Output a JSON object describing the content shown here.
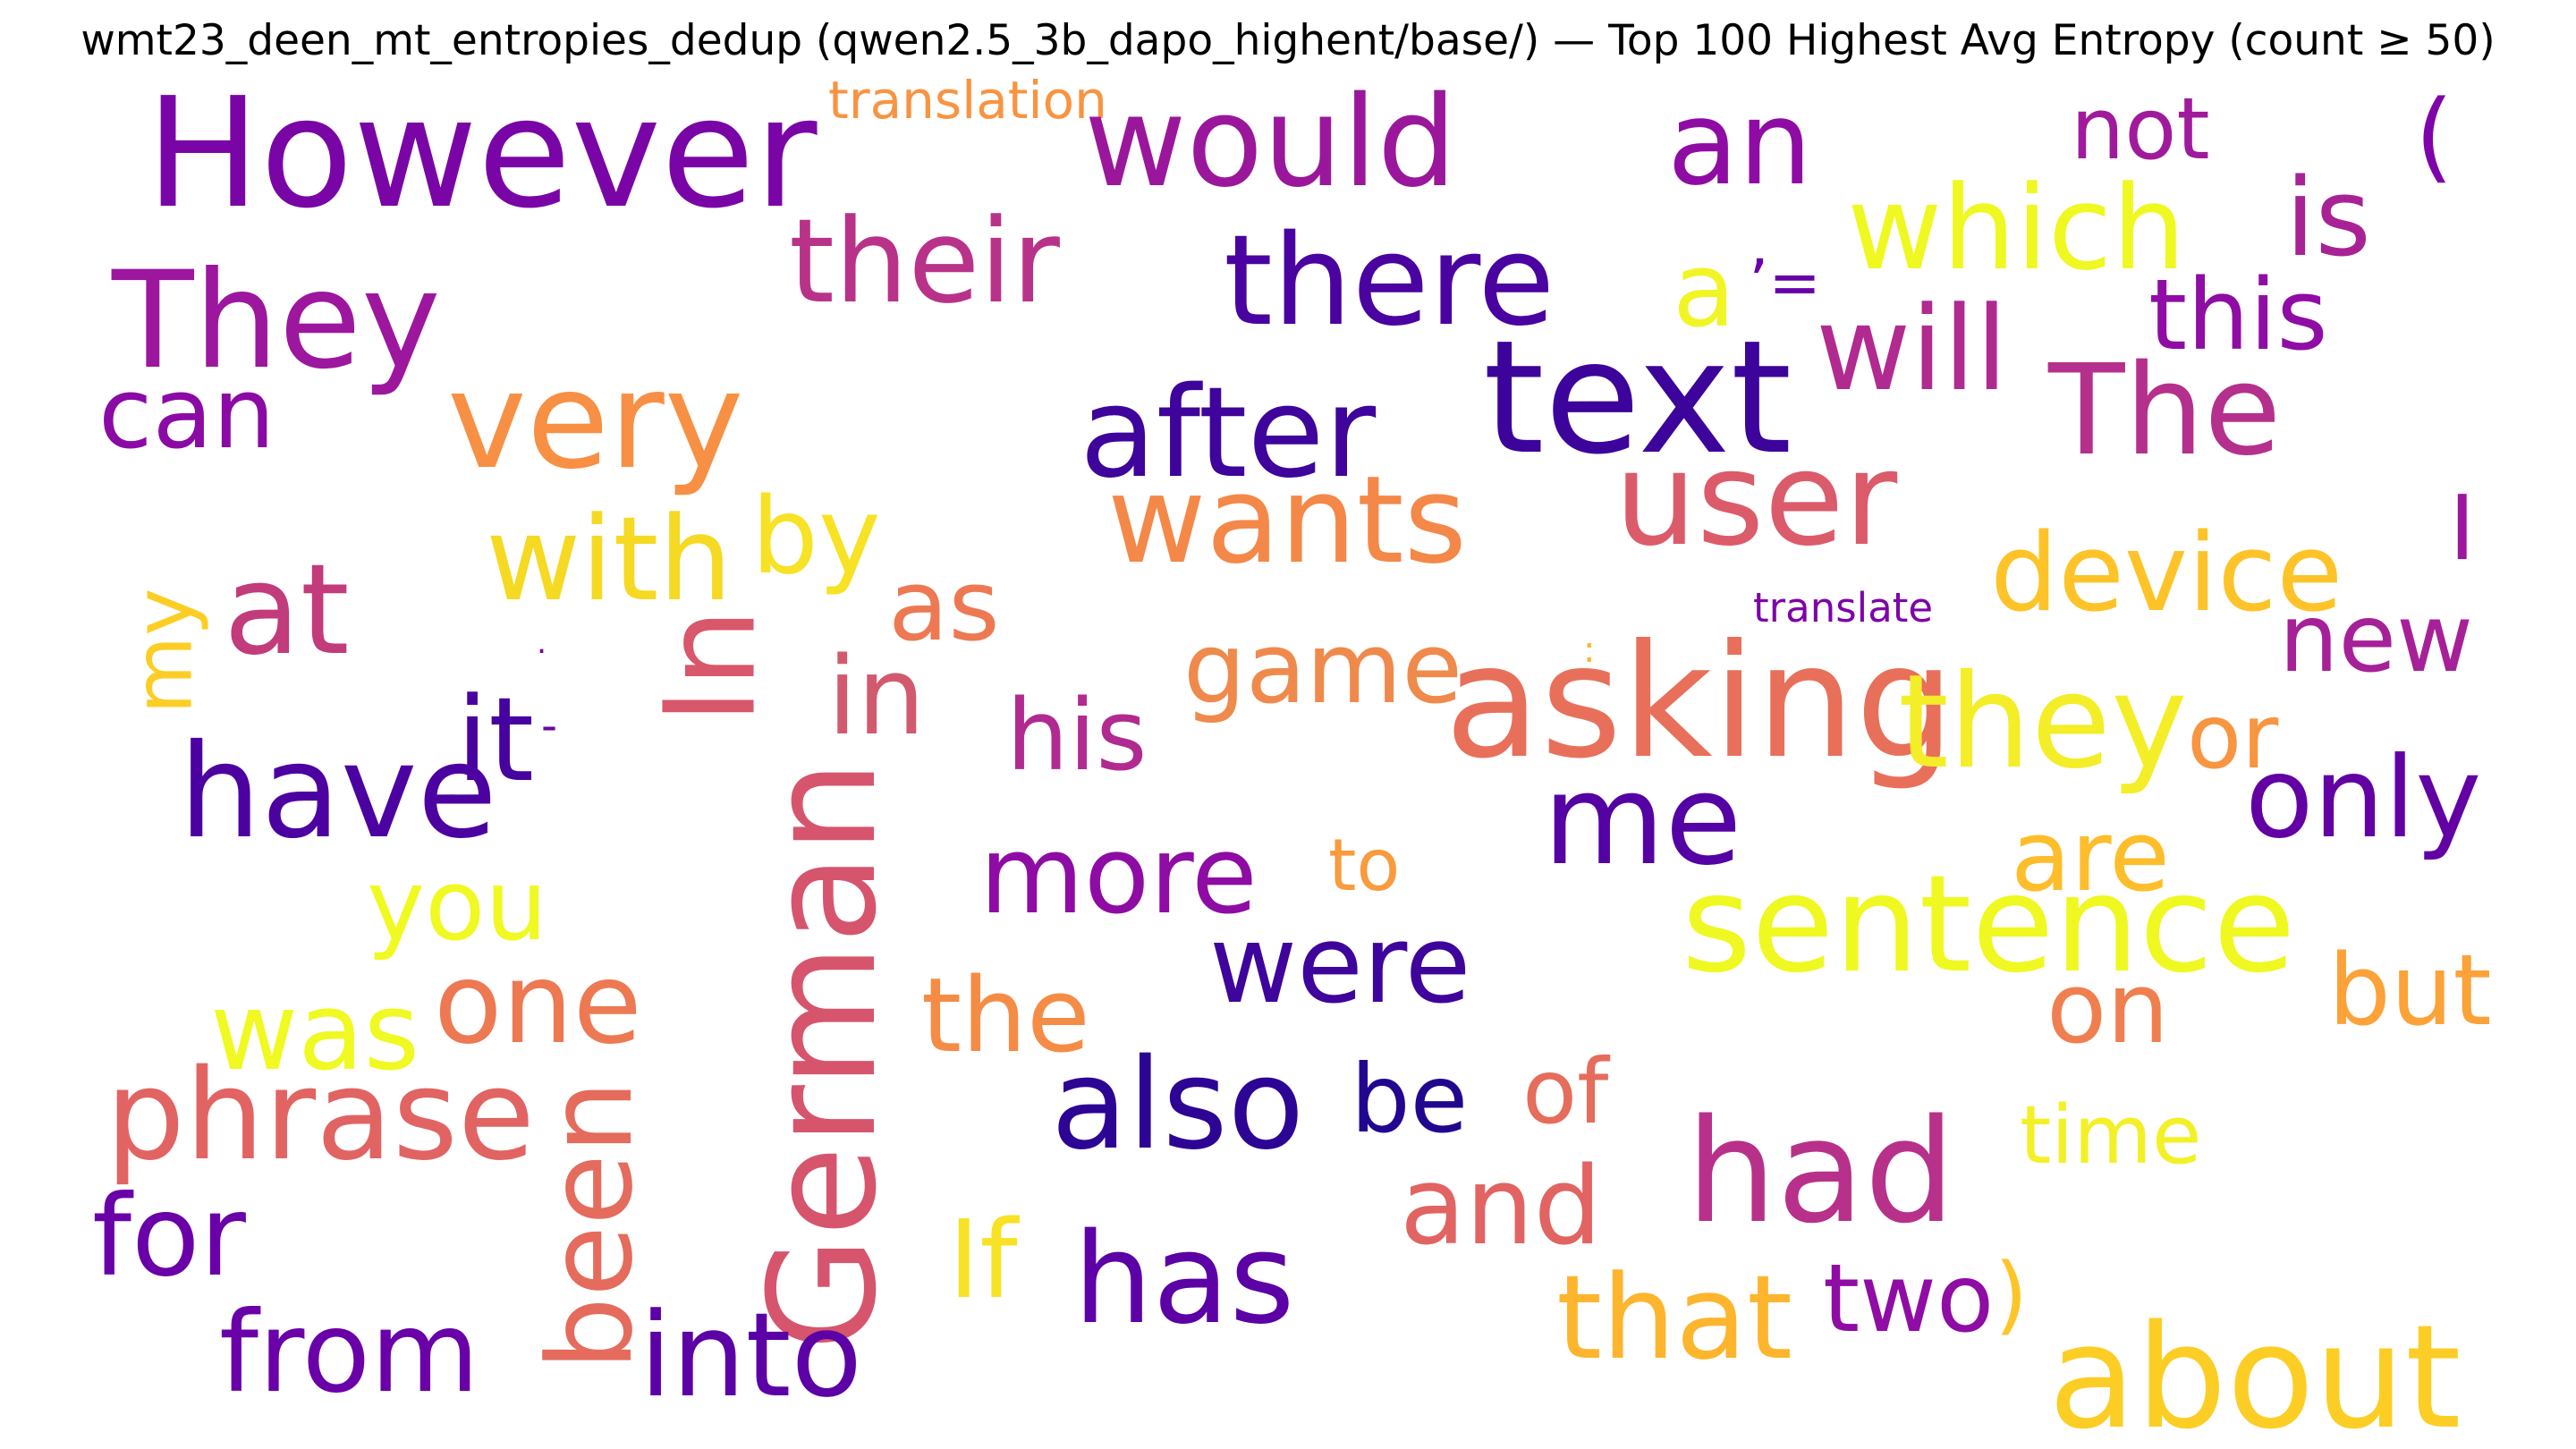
{
  "figure": {
    "title": "wmt23_deen_mt_entropies_dedup (qwen2.5_3b_dapo_highent/base/) — Top 100 Highest Avg Entropy (count ≥ 50)",
    "colormap": "plasma"
  },
  "words": [
    {
      "text": "However",
      "color": "#7a05a6"
    },
    {
      "text": "translation",
      "color": "#f89441"
    },
    {
      "text": "would",
      "color": "#9a179b"
    },
    {
      "text": "an",
      "color": "#8e0ca4"
    },
    {
      "text": "not",
      "color": "#a01a9c"
    },
    {
      "text": "(",
      "color": "#7e03a8"
    },
    {
      "text": "their",
      "color": "#b93289"
    },
    {
      "text": "which",
      "color": "#eff821"
    },
    {
      "text": "is",
      "color": "#a82296"
    },
    {
      "text": "They",
      "color": "#9c179e"
    },
    {
      "text": "there",
      "color": "#4a02a0"
    },
    {
      "text": "a",
      "color": "#f1f525"
    },
    {
      "text": "’=",
      "color": "#6a00a8"
    },
    {
      "text": "this",
      "color": "#8f0da4"
    },
    {
      "text": "will",
      "color": "#b12a90"
    },
    {
      "text": "can",
      "color": "#8b0aa5"
    },
    {
      "text": "very",
      "color": "#f79044"
    },
    {
      "text": "after",
      "color": "#3e049c"
    },
    {
      "text": "text",
      "color": "#3c049b"
    },
    {
      "text": "The",
      "color": "#b5308c"
    },
    {
      "text": "user",
      "color": "#dc5b6a"
    },
    {
      "text": "wants",
      "color": "#f48849"
    },
    {
      "text": "with",
      "color": "#f5d923"
    },
    {
      "text": "by",
      "color": "#f7e225"
    },
    {
      "text": "device",
      "color": "#fdc328"
    },
    {
      "text": "I",
      "color": "#9c179e"
    },
    {
      "text": "my",
      "color": "#fcce25"
    },
    {
      "text": "at",
      "color": "#c23b7a"
    },
    {
      "text": ".",
      "color": "#7201a8"
    },
    {
      "text": "In",
      "color": "#d8576b"
    },
    {
      "text": "as",
      "color": "#ed7953"
    },
    {
      "text": "translate",
      "color": "#7e03a8"
    },
    {
      "text": "new",
      "color": "#a62098"
    },
    {
      "text": "game",
      "color": "#ef8a4c"
    },
    {
      "text": ":",
      "color": "#fdb42f"
    },
    {
      "text": "in",
      "color": "#d25a6e"
    },
    {
      "text": "his",
      "color": "#b12a90"
    },
    {
      "text": "asking",
      "color": "#e8705a"
    },
    {
      "text": "they",
      "color": "#f3ee27"
    },
    {
      "text": "or",
      "color": "#f89540"
    },
    {
      "text": "it",
      "color": "#46039f"
    },
    {
      "text": "-",
      "color": "#6a00a8"
    },
    {
      "text": "have",
      "color": "#4c02a1"
    },
    {
      "text": "only",
      "color": "#6200a4"
    },
    {
      "text": "me",
      "color": "#5402a3"
    },
    {
      "text": "are",
      "color": "#febd2a"
    },
    {
      "text": "more",
      "color": "#8e0ca4"
    },
    {
      "text": "to",
      "color": "#f99b3e"
    },
    {
      "text": "you",
      "color": "#f0f921"
    },
    {
      "text": "German",
      "color": "#d6556d"
    },
    {
      "text": "sentence",
      "color": "#eff821"
    },
    {
      "text": "were",
      "color": "#3e049c"
    },
    {
      "text": "was",
      "color": "#f0f921"
    },
    {
      "text": "one",
      "color": "#ed7953"
    },
    {
      "text": "the",
      "color": "#f58c46"
    },
    {
      "text": "on",
      "color": "#f07f4f"
    },
    {
      "text": "but",
      "color": "#fba238"
    },
    {
      "text": "phrase",
      "color": "#e16462"
    },
    {
      "text": "also",
      "color": "#2d0594"
    },
    {
      "text": "be",
      "color": "#220690"
    },
    {
      "text": "of",
      "color": "#e66c5c"
    },
    {
      "text": "time",
      "color": "#f3f027"
    },
    {
      "text": "had",
      "color": "#b7318a"
    },
    {
      "text": "and",
      "color": "#e16462"
    },
    {
      "text": "for",
      "color": "#6a00a8"
    },
    {
      "text": "been",
      "color": "#e56b5d"
    },
    {
      "text": "If",
      "color": "#f7e225"
    },
    {
      "text": "has",
      "color": "#5c01a6"
    },
    {
      "text": "that",
      "color": "#fdb52e"
    },
    {
      "text": "two",
      "color": "#8f0da4"
    },
    {
      "text": ")",
      "color": "#fdc527"
    },
    {
      "text": "from",
      "color": "#6a00a8"
    },
    {
      "text": "into",
      "color": "#5c01a6"
    },
    {
      "text": "about",
      "color": "#fcce25"
    }
  ]
}
